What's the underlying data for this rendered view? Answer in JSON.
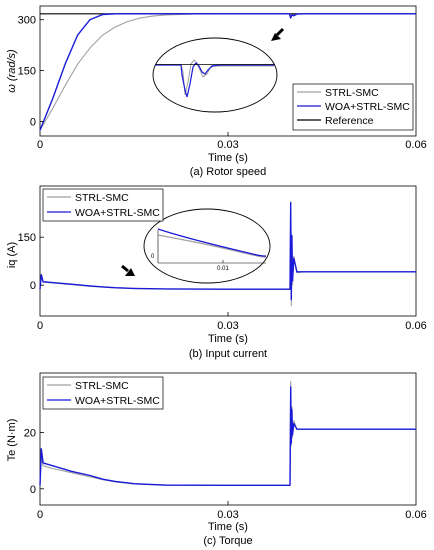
{
  "colors": {
    "strl_smc": "#a0a0a0",
    "woa_strl_smc": "#1a1ad8",
    "reference": "#000000"
  },
  "chart_data": [
    {
      "type": "line",
      "caption": "(a) Rotor speed",
      "xlabel": "Time (s)",
      "ylabel": "ω (rad/s)",
      "xlim": [
        0,
        0.06
      ],
      "ylim": [
        -15,
        320
      ],
      "xticks": [
        "0",
        "0.03",
        "0.06"
      ],
      "yticks": [
        "0",
        "150",
        "300"
      ],
      "grid": false,
      "legend": {
        "position": "bottom-right",
        "entries": [
          "STRL-SMC",
          "WOA+STRL-SMC",
          "Reference"
        ]
      },
      "annotations": [
        "zoom inset (ellipse) of speed dip near t=0.04 s",
        "arrow pointing to disturbance"
      ],
      "series": [
        {
          "name": "STRL-SMC",
          "x": [
            0,
            0.002,
            0.004,
            0.006,
            0.008,
            0.01,
            0.012,
            0.014,
            0.016,
            0.018,
            0.02,
            0.025,
            0.03,
            0.035,
            0.0398,
            0.04,
            0.0402,
            0.0405,
            0.041,
            0.042,
            0.06
          ],
          "y": [
            0,
            55,
            115,
            170,
            212,
            245,
            266,
            280,
            289,
            294,
            297,
            299.5,
            300,
            300,
            300,
            294,
            298,
            296,
            299,
            300,
            300
          ]
        },
        {
          "name": "WOA+STRL-SMC",
          "x": [
            0,
            0.002,
            0.004,
            0.006,
            0.008,
            0.01,
            0.012,
            0.014,
            0.016,
            0.02,
            0.03,
            0.0398,
            0.04,
            0.0402,
            0.0405,
            0.041,
            0.042,
            0.06
          ],
          "y": [
            0,
            80,
            170,
            245,
            285,
            298,
            300,
            300,
            300,
            300,
            300,
            300,
            289,
            297,
            295,
            299,
            300,
            300
          ]
        },
        {
          "name": "Reference",
          "x": [
            0,
            0.06
          ],
          "y": [
            300,
            300
          ]
        }
      ]
    },
    {
      "type": "line",
      "caption": "(b) Input current",
      "xlabel": "Time (s)",
      "ylabel": "iq (A)",
      "xlim": [
        0,
        0.06
      ],
      "ylim": [
        -65,
        250
      ],
      "xticks": [
        "0",
        "0.03",
        "0.06"
      ],
      "yticks": [
        "0",
        "150"
      ],
      "grid": false,
      "legend": {
        "position": "top-left",
        "entries": [
          "STRL-SMC",
          "WOA+STRL-SMC"
        ]
      },
      "inset": {
        "ytick": "0",
        "xtick": "0.01"
      },
      "annotations": [
        "zoom inset (ellipse) of current decay",
        "arrow pointing to early transient"
      ],
      "series": [
        {
          "name": "STRL-SMC",
          "x": [
            0,
            0.0002,
            0.0005,
            0.002,
            0.005,
            0.008,
            0.01,
            0.012,
            0.015,
            0.02,
            0.03,
            0.0399,
            0.04,
            0.0401,
            0.0402,
            0.0403,
            0.0405,
            0.041,
            0.042,
            0.06
          ],
          "y": [
            0,
            28,
            17,
            15,
            11,
            7,
            5,
            3,
            1.5,
            0.5,
            0,
            0,
            170,
            -40,
            120,
            10,
            80,
            40,
            42,
            42
          ]
        },
        {
          "name": "WOA+STRL-SMC",
          "x": [
            0,
            0.0002,
            0.0005,
            0.002,
            0.005,
            0.008,
            0.01,
            0.012,
            0.015,
            0.02,
            0.03,
            0.0399,
            0.04,
            0.0401,
            0.0402,
            0.0403,
            0.0405,
            0.041,
            0.042,
            0.06
          ],
          "y": [
            0,
            35,
            18,
            16,
            12,
            8,
            5.5,
            3.5,
            1.8,
            0.6,
            0,
            0,
            210,
            -25,
            130,
            20,
            75,
            42,
            42,
            42
          ]
        }
      ]
    },
    {
      "type": "line",
      "caption": "(c) Torque",
      "xlabel": "Time (s)",
      "ylabel": "Te (N·m)",
      "xlim": [
        0,
        0.06
      ],
      "ylim": [
        -7,
        40
      ],
      "xticks": [
        "0",
        "0.03",
        "0.06"
      ],
      "yticks": [
        "0",
        "20"
      ],
      "grid": false,
      "legend": {
        "position": "top-left",
        "entries": [
          "STRL-SMC",
          "WOA+STRL-SMC"
        ]
      },
      "series": [
        {
          "name": "STRL-SMC",
          "x": [
            0,
            0.0002,
            0.0005,
            0.002,
            0.005,
            0.008,
            0.01,
            0.012,
            0.015,
            0.02,
            0.03,
            0.0399,
            0.04,
            0.0401,
            0.0402,
            0.0403,
            0.0405,
            0.041,
            0.042,
            0.06
          ],
          "y": [
            0,
            10,
            7,
            6,
            4.5,
            3,
            2,
            1.2,
            0.5,
            0,
            0,
            0,
            37,
            14,
            28,
            17,
            23,
            20,
            20,
            20
          ]
        },
        {
          "name": "WOA+STRL-SMC",
          "x": [
            0,
            0.0002,
            0.0005,
            0.002,
            0.005,
            0.008,
            0.01,
            0.012,
            0.015,
            0.02,
            0.03,
            0.0399,
            0.04,
            0.0401,
            0.0402,
            0.0403,
            0.0405,
            0.041,
            0.042,
            0.06
          ],
          "y": [
            0,
            13,
            8,
            7,
            5,
            3.5,
            2.2,
            1.4,
            0.6,
            0.1,
            0,
            0,
            35,
            15,
            27,
            18,
            22,
            20,
            20,
            20
          ]
        }
      ]
    }
  ]
}
